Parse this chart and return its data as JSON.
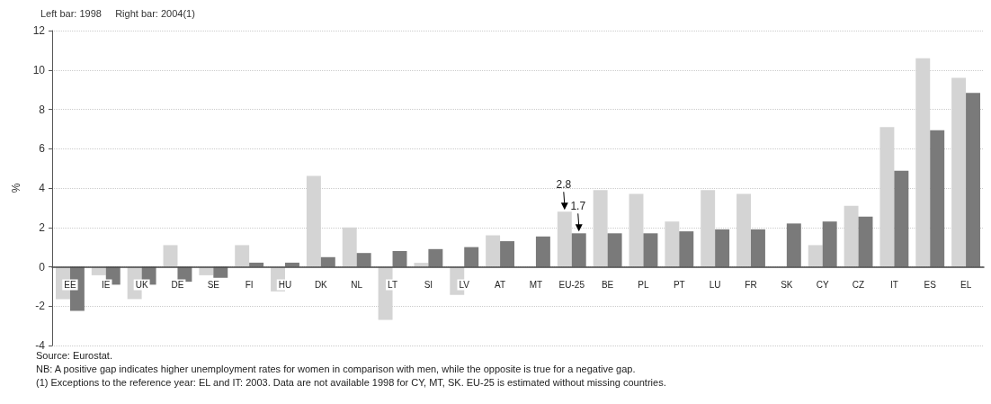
{
  "chart_data": {
    "type": "bar",
    "title": "Left bar: 1998     Right bar: 2004(1)",
    "ylabel": "%",
    "categories": [
      "EE",
      "IE",
      "UK",
      "DE",
      "SE",
      "FI",
      "HU",
      "DK",
      "NL",
      "LT",
      "SI",
      "LV",
      "AT",
      "MT",
      "EU-25",
      "BE",
      "PL",
      "PT",
      "LU",
      "FR",
      "SK",
      "CY",
      "CZ",
      "IT",
      "ES",
      "EL"
    ],
    "series": [
      {
        "color": "#d4d4d4",
        "values": [
          -1.64,
          -0.43,
          -1.64,
          1.1,
          -0.43,
          1.1,
          -1.25,
          4.62,
          2.0,
          -2.7,
          0.2,
          -1.43,
          1.6,
          null,
          2.8,
          3.9,
          3.7,
          2.3,
          3.9,
          3.7,
          null,
          1.1,
          3.1,
          7.1,
          10.6,
          9.6
        ]
      },
      {
        "color": "#7a7a7a",
        "values": [
          -2.24,
          -0.91,
          -0.91,
          -0.76,
          -0.56,
          0.21,
          0.21,
          0.49,
          0.7,
          0.8,
          0.9,
          1.0,
          1.3,
          1.54,
          1.7,
          1.7,
          1.7,
          1.8,
          1.9,
          1.9,
          2.2,
          2.3,
          2.55,
          4.88,
          6.94,
          8.84
        ]
      }
    ],
    "ylim": [
      -4,
      12
    ],
    "yticks": [
      -4,
      -2,
      0,
      2,
      4,
      6,
      8,
      10,
      12
    ],
    "grid": "y",
    "annotations": [
      {
        "text": "2.8",
        "x": "EU-25",
        "y": 2.8
      },
      {
        "text": "1.7",
        "x": "EU-25",
        "y": 1.7
      },
      "Source: Eurostat.",
      "NB: A positive gap indicates higher unemployment rates for women in comparison with men, while the opposite is true for a negative gap.",
      "(1) Exceptions to the reference year: EL and IT: 2003. Data are not available 1998 for CY, MT, SK. EU-25 is estimated without missing countries."
    ]
  }
}
